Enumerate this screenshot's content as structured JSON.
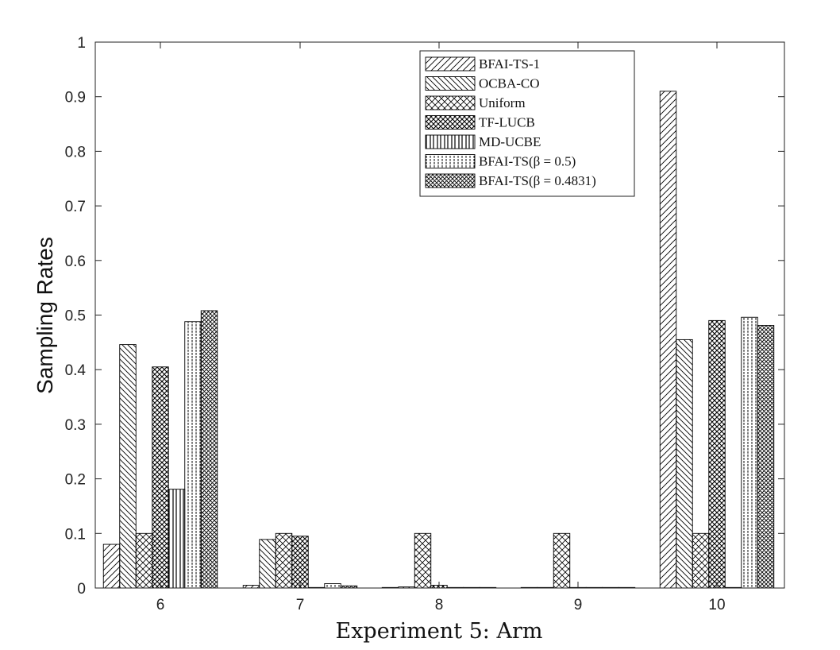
{
  "chart_data": {
    "type": "bar",
    "title": "",
    "xlabel": "Experiment 5: Arm",
    "ylabel": "Sampling Rates",
    "categories": [
      "6",
      "7",
      "8",
      "9",
      "10"
    ],
    "ylim": [
      0,
      1
    ],
    "yticks": [
      "0",
      "0.1",
      "0.2",
      "0.3",
      "0.4",
      "0.5",
      "0.6",
      "0.7",
      "0.8",
      "0.9",
      "1"
    ],
    "grid": false,
    "legend_position": "top-right",
    "series": [
      {
        "name": "BFAI-TS-1",
        "pattern": "diag-up",
        "values": [
          0.08,
          0.005,
          0.001,
          0.001,
          0.91
        ]
      },
      {
        "name": "OCBA-CO",
        "pattern": "diag-down",
        "values": [
          0.446,
          0.089,
          0.002,
          0.001,
          0.455
        ]
      },
      {
        "name": "Uniform",
        "pattern": "crosshatch-light",
        "values": [
          0.1,
          0.1,
          0.1,
          0.1,
          0.1
        ]
      },
      {
        "name": "TF-LUCB",
        "pattern": "crosshatch-dense",
        "values": [
          0.405,
          0.095,
          0.005,
          0.001,
          0.49
        ]
      },
      {
        "name": "MD-UCBE",
        "pattern": "vertical-wide",
        "values": [
          0.181,
          0.001,
          0.001,
          0.001,
          0.001
        ]
      },
      {
        "name": "BFAI-TS(β = 0.5)",
        "pattern": "vertical-dense",
        "values": [
          0.488,
          0.008,
          0.001,
          0.001,
          0.496
        ]
      },
      {
        "name": "BFAI-TS(β = 0.4831)",
        "pattern": "crosshatch-fine",
        "values": [
          0.508,
          0.004,
          0.001,
          0.001,
          0.481
        ]
      }
    ]
  }
}
